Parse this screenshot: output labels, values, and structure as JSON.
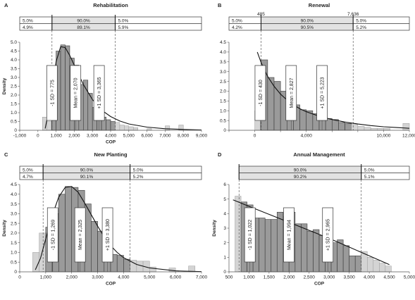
{
  "chart_data": [
    {
      "type": "bar",
      "panel_letter": "A",
      "title": "Rehabilitation",
      "xlabel": "COP",
      "ylabel": "Density",
      "xlim": [
        -1000,
        9000
      ],
      "ylim": [
        0,
        5.0
      ],
      "xticks": [
        -1000,
        0,
        1000,
        2000,
        3000,
        4000,
        5000,
        6000,
        7000,
        8000,
        9000
      ],
      "xtick_labels": [
        "-1,000",
        "0",
        "1,000",
        "2,000",
        "3,000",
        "4,000",
        "5,000",
        "6,000",
        "7,000",
        "8,000",
        "9,000"
      ],
      "yticks": [
        0,
        0.5,
        1.0,
        1.5,
        2.0,
        2.5,
        3.0,
        3.5,
        4.0,
        4.5,
        5.0
      ],
      "ytick_labels": [
        "0",
        "0.5",
        "1.0",
        "1.5",
        "2.0",
        "2.5",
        "3.0",
        "3.5",
        "4.0",
        "4.5",
        "5.0"
      ],
      "bin_width": 250,
      "bins": [
        {
          "x": 250,
          "y": 0.75
        },
        {
          "x": 500,
          "y": 0.5
        },
        {
          "x": 750,
          "y": 3.05
        },
        {
          "x": 1000,
          "y": 4.5
        },
        {
          "x": 1250,
          "y": 4.85
        },
        {
          "x": 1500,
          "y": 4.8
        },
        {
          "x": 1750,
          "y": 4.1
        },
        {
          "x": 2000,
          "y": 3.7
        },
        {
          "x": 2250,
          "y": 2.6
        },
        {
          "x": 2500,
          "y": 2.85
        },
        {
          "x": 2750,
          "y": 2.1
        },
        {
          "x": 3000,
          "y": 1.3
        },
        {
          "x": 3250,
          "y": 1.0
        },
        {
          "x": 3500,
          "y": 0.75
        },
        {
          "x": 3750,
          "y": 0.6
        },
        {
          "x": 4000,
          "y": 0.5
        },
        {
          "x": 4250,
          "y": 0.45
        },
        {
          "x": 4500,
          "y": 0.3
        },
        {
          "x": 4750,
          "y": 0.25
        },
        {
          "x": 5000,
          "y": 0.2
        },
        {
          "x": 5250,
          "y": 0.15
        },
        {
          "x": 6000,
          "y": 0.1
        },
        {
          "x": 7000,
          "y": 0.25
        },
        {
          "x": 7750,
          "y": 0.3
        }
      ],
      "fit_curve": {
        "x": [
          400,
          750,
          1000,
          1250,
          1500,
          1750,
          2000,
          2500,
          3000,
          3500,
          4000,
          4500,
          5000,
          6000,
          7000,
          8000,
          9000
        ],
        "y": [
          0.1,
          1.9,
          3.9,
          4.75,
          4.7,
          4.25,
          3.7,
          2.6,
          1.75,
          1.15,
          0.78,
          0.53,
          0.36,
          0.18,
          0.09,
          0.05,
          0.02
        ]
      },
      "lower_bound": 775,
      "upper_bound": 4250,
      "lower_label": "",
      "upper_label": "",
      "percentiles": {
        "top": [
          "5.0%",
          "90.0%",
          "5.0%"
        ],
        "bottom": [
          "4.9%",
          "89.1%",
          "5.9%"
        ]
      },
      "sd_markers": [
        {
          "label": "-1 SD = 775",
          "x": 775
        },
        {
          "label": "Mean = 2,070",
          "x": 2070
        },
        {
          "label": "+1 SD = 3,365",
          "x": 3365
        }
      ]
    },
    {
      "type": "bar",
      "panel_letter": "B",
      "title": "Renewal",
      "xlabel": "",
      "ylabel": "",
      "xlim": [
        -2000,
        12000
      ],
      "ylim": [
        0,
        4.5
      ],
      "xticks": [
        -2000,
        0,
        2000,
        4000,
        6000,
        8000,
        10000,
        12000
      ],
      "xtick_labels": [
        "",
        "0",
        "",
        "4,000",
        "",
        "",
        "10,000",
        "12,000"
      ],
      "yticks": [
        0,
        0.5,
        1.0,
        1.5,
        2.0,
        2.5,
        3.0,
        3.5,
        4.0,
        4.5
      ],
      "ytick_labels": [
        "0",
        "0.5",
        "1.0",
        "1.5",
        "2.0",
        "2.5",
        "3.0",
        "3.5",
        "4.0",
        "4.5"
      ],
      "bin_width": 500,
      "bins": [
        {
          "x": 0,
          "y": 1.0
        },
        {
          "x": 500,
          "y": 3.6
        },
        {
          "x": 1000,
          "y": 2.7
        },
        {
          "x": 1500,
          "y": 2.5
        },
        {
          "x": 2000,
          "y": 2.0
        },
        {
          "x": 2500,
          "y": 1.75
        },
        {
          "x": 3000,
          "y": 1.3
        },
        {
          "x": 3500,
          "y": 1.05
        },
        {
          "x": 4000,
          "y": 1.0
        },
        {
          "x": 4500,
          "y": 0.85
        },
        {
          "x": 5000,
          "y": 0.7
        },
        {
          "x": 5500,
          "y": 0.6
        },
        {
          "x": 6000,
          "y": 0.55
        },
        {
          "x": 6500,
          "y": 0.4
        },
        {
          "x": 7000,
          "y": 0.35
        },
        {
          "x": 7500,
          "y": 0.3
        },
        {
          "x": 8000,
          "y": 0.2
        },
        {
          "x": 8500,
          "y": 0.15
        },
        {
          "x": 9000,
          "y": 0.1
        },
        {
          "x": 9500,
          "y": 0.1
        },
        {
          "x": 10000,
          "y": 0.1
        },
        {
          "x": 11500,
          "y": 0.35
        }
      ],
      "fit_curve": {
        "x": [
          200,
          500,
          1000,
          1500,
          2000,
          2500,
          3000,
          3500,
          4000,
          5000,
          6000,
          7000,
          8000,
          9000,
          10000,
          11000,
          12000
        ],
        "y": [
          4.0,
          3.45,
          2.75,
          2.25,
          1.85,
          1.55,
          1.3,
          1.1,
          0.95,
          0.72,
          0.55,
          0.42,
          0.32,
          0.24,
          0.18,
          0.14,
          0.1
        ]
      },
      "lower_bound": 485,
      "upper_bound": 7636,
      "lower_label": "485",
      "upper_label": "7,636",
      "percentiles": {
        "top": [
          "5.0%",
          "90.0%",
          "5.0%"
        ],
        "bottom": [
          "4.2%",
          "90.5%",
          "5.2%"
        ]
      },
      "sd_markers": [
        {
          "label": "-1 SD = 430",
          "x": 430
        },
        {
          "label": "Mean = 2,827",
          "x": 2827
        },
        {
          "label": "+1 SD = 5,223",
          "x": 5223
        }
      ]
    },
    {
      "type": "bar",
      "panel_letter": "C",
      "title": "New Planting",
      "xlabel": "COP",
      "ylabel": "Density",
      "xlim": [
        0,
        7000
      ],
      "ylim": [
        0,
        4.5
      ],
      "xticks": [
        0,
        1000,
        2000,
        3000,
        4000,
        5000,
        6000,
        7000
      ],
      "xtick_labels": [
        "0",
        "1,000",
        "2,000",
        "3,000",
        "4,000",
        "5,000",
        "6,000",
        "7,000"
      ],
      "yticks": [
        0,
        0.5,
        1.0,
        1.5,
        2.0,
        2.5,
        3.0,
        3.5,
        4.0,
        4.5
      ],
      "ytick_labels": [
        "0",
        "0.5",
        "1.0",
        "1.5",
        "2.0",
        "2.5",
        "3.0",
        "3.5",
        "4.0",
        "4.5"
      ],
      "bin_width": 250,
      "bins": [
        {
          "x": 500,
          "y": 1.0
        },
        {
          "x": 750,
          "y": 2.0
        },
        {
          "x": 1000,
          "y": 2.3
        },
        {
          "x": 1250,
          "y": 3.0
        },
        {
          "x": 1500,
          "y": 4.0
        },
        {
          "x": 1750,
          "y": 4.4
        },
        {
          "x": 2000,
          "y": 4.35
        },
        {
          "x": 2250,
          "y": 4.2
        },
        {
          "x": 2500,
          "y": 3.5
        },
        {
          "x": 2750,
          "y": 2.6
        },
        {
          "x": 3000,
          "y": 2.1
        },
        {
          "x": 3250,
          "y": 1.55
        },
        {
          "x": 3500,
          "y": 0.9
        },
        {
          "x": 3750,
          "y": 0.85
        },
        {
          "x": 4000,
          "y": 0.65
        },
        {
          "x": 4250,
          "y": 0.6
        },
        {
          "x": 4500,
          "y": 0.55
        },
        {
          "x": 4750,
          "y": 0.55
        },
        {
          "x": 5000,
          "y": 0.25
        },
        {
          "x": 5750,
          "y": 0.2
        },
        {
          "x": 6500,
          "y": 0.3
        }
      ],
      "fit_curve": {
        "x": [
          600,
          800,
          1000,
          1250,
          1500,
          1750,
          2000,
          2250,
          2500,
          2750,
          3000,
          3250,
          3500,
          3750,
          4000,
          4500,
          5000,
          6000,
          7000
        ],
        "y": [
          0.1,
          0.7,
          1.7,
          2.9,
          3.85,
          4.35,
          4.4,
          4.1,
          3.55,
          2.95,
          2.35,
          1.8,
          1.35,
          1.0,
          0.73,
          0.38,
          0.2,
          0.05,
          0.01
        ]
      },
      "lower_bound": 900,
      "upper_bound": 4250,
      "lower_label": "",
      "upper_label": "",
      "percentiles": {
        "top": [
          "5.0%",
          "90.0%",
          "5.0%"
        ],
        "bottom": [
          "4.7%",
          "90.1%",
          "5.2%"
        ]
      },
      "sd_markers": [
        {
          "label": "-1 SD = 1,269",
          "x": 1269
        },
        {
          "label": "Mean = 2,325",
          "x": 2325
        },
        {
          "label": "+1 SD = 3,380",
          "x": 3380
        }
      ]
    },
    {
      "type": "bar",
      "panel_letter": "D",
      "title": "Annual Management",
      "xlabel": "COP",
      "ylabel": "Density",
      "xlim": [
        500,
        5000
      ],
      "ylim": [
        0,
        6
      ],
      "xticks": [
        500,
        1000,
        1500,
        2000,
        2500,
        3000,
        3500,
        4000,
        4500,
        5000
      ],
      "xtick_labels": [
        "500",
        "1,000",
        "1,500",
        "2,000",
        "2,500",
        "3,000",
        "3,500",
        "4,000",
        "4,500",
        "5,000"
      ],
      "yticks": [
        0,
        1,
        2,
        3,
        4,
        5,
        6
      ],
      "ytick_labels": [
        "0",
        "1",
        "2",
        "3",
        "4",
        "5",
        "6"
      ],
      "bin_width": 150,
      "bins": [
        {
          "x": 650,
          "y": 5.2
        },
        {
          "x": 800,
          "y": 4.8
        },
        {
          "x": 950,
          "y": 4.6
        },
        {
          "x": 1100,
          "y": 3.7
        },
        {
          "x": 1250,
          "y": 3.7
        },
        {
          "x": 1400,
          "y": 3.6
        },
        {
          "x": 1550,
          "y": 3.6
        },
        {
          "x": 1700,
          "y": 4.1
        },
        {
          "x": 1850,
          "y": 3.8
        },
        {
          "x": 2000,
          "y": 4.1
        },
        {
          "x": 2150,
          "y": 3.3
        },
        {
          "x": 2300,
          "y": 3.3
        },
        {
          "x": 2450,
          "y": 2.8
        },
        {
          "x": 2600,
          "y": 2.9
        },
        {
          "x": 2750,
          "y": 2.5
        },
        {
          "x": 2900,
          "y": 2.4
        },
        {
          "x": 3050,
          "y": 2.0
        },
        {
          "x": 3200,
          "y": 2.2
        },
        {
          "x": 3350,
          "y": 1.8
        },
        {
          "x": 3500,
          "y": 1.1
        },
        {
          "x": 3650,
          "y": 1.1
        },
        {
          "x": 3800,
          "y": 1.4
        },
        {
          "x": 3950,
          "y": 1.0
        },
        {
          "x": 4100,
          "y": 0.8
        },
        {
          "x": 4250,
          "y": 0.6
        },
        {
          "x": 4400,
          "y": 0.4
        }
      ],
      "fit_curve": {
        "x": [
          600,
          1000,
          1500,
          2000,
          2500,
          3000,
          3500,
          4000,
          4500
        ],
        "y": [
          4.95,
          4.5,
          3.95,
          3.4,
          2.85,
          2.3,
          1.7,
          1.1,
          0.5
        ]
      },
      "lower_bound": 750,
      "upper_bound": 3800,
      "lower_label": "",
      "upper_label": "",
      "percentiles": {
        "top": [
          "",
          "90.0%",
          "5.0%"
        ],
        "bottom": [
          "",
          "90.2%",
          "5.1%"
        ]
      },
      "sd_markers": [
        {
          "label": "-1 SD = 1,022",
          "x": 1022
        },
        {
          "label": "Mean = 1,994",
          "x": 1994
        },
        {
          "label": "+1 SD = 2,965",
          "x": 2965
        }
      ]
    }
  ]
}
